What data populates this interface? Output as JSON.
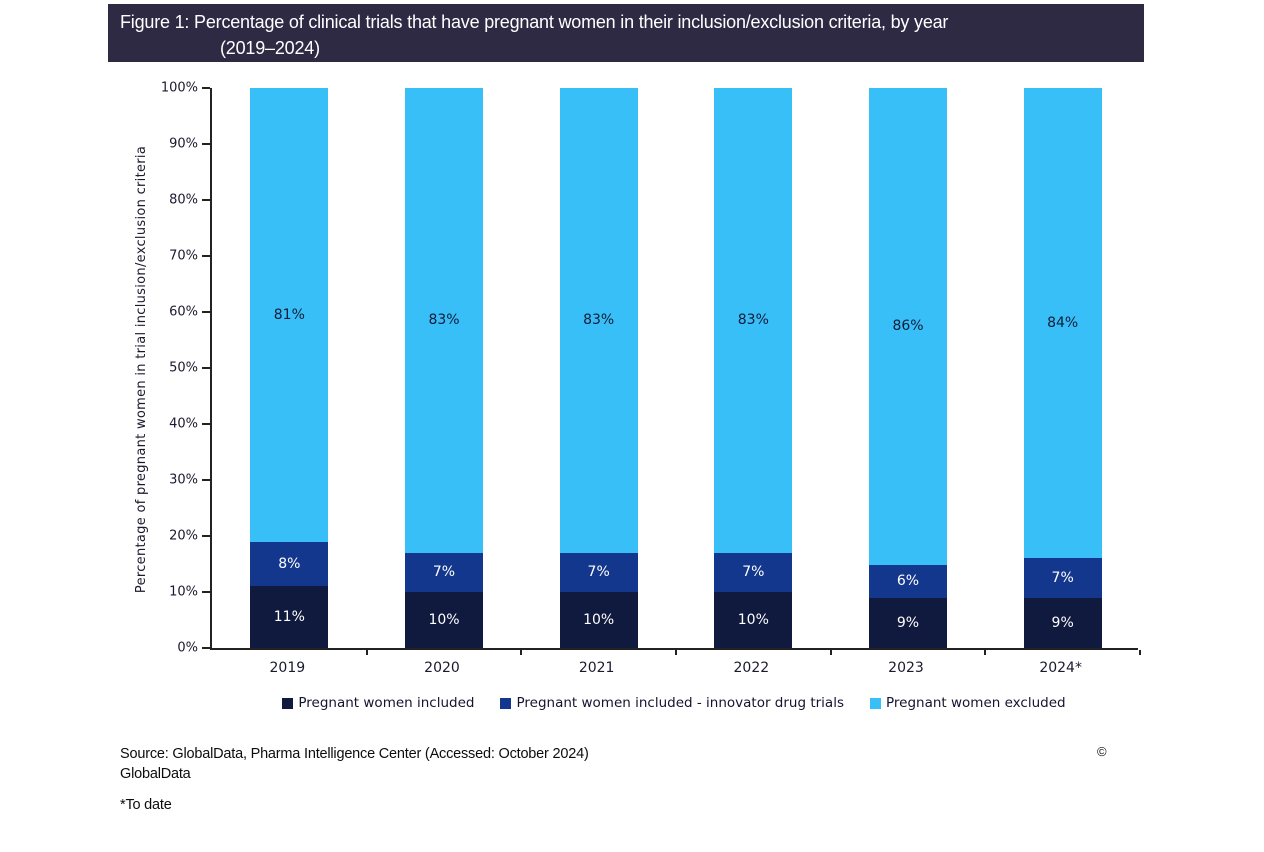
{
  "title": {
    "line1": "Figure 1: Percentage of clinical trials that have pregnant women in their inclusion/exclusion criteria, by year",
    "line2": "(2019–2024)"
  },
  "chart_data": {
    "type": "bar",
    "stacked": true,
    "categories": [
      "2019",
      "2020",
      "2021",
      "2022",
      "2023",
      "2024*"
    ],
    "series": [
      {
        "name": "Pregnant women included",
        "color": "#101a3e",
        "label_color": "#ffffff",
        "values": [
          11,
          10,
          10,
          10,
          9,
          9
        ]
      },
      {
        "name": "Pregnant women included - innovator drug trials",
        "color": "#13378c",
        "label_color": "#ffffff",
        "values": [
          8,
          7,
          7,
          7,
          6,
          7
        ]
      },
      {
        "name": "Pregnant women excluded",
        "color": "#38bff8",
        "label_color": "#101c38",
        "values": [
          81,
          83,
          83,
          83,
          86,
          84
        ]
      }
    ],
    "title": "Figure 1: Percentage of clinical trials that have pregnant women in their inclusion/exclusion criteria, by year (2019–2024)",
    "xlabel": "",
    "ylabel": "Percentage of pregnant women  in trial inclusion/exclusion criteria",
    "ylim": [
      0,
      100
    ],
    "ytick_step": 10,
    "ytick_suffix": "%",
    "value_label_suffix": "%",
    "grid": false,
    "legend_position": "bottom"
  },
  "footer": {
    "source_line1": "Source: GlobalData, Pharma Intelligence Center (Accessed: October 2024)",
    "source_line2": "GlobalData",
    "footnote": "*To date",
    "copyright": "©"
  },
  "colors": {
    "title_bar_bg": "#2e2a44",
    "title_text": "#ffffff",
    "axis_line": "#222222",
    "tick_text": "#1a1a2e",
    "page_bg": "#ffffff"
  }
}
